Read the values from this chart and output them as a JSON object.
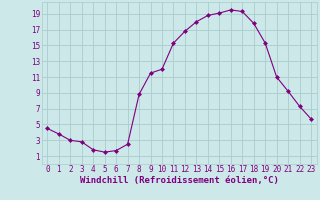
{
  "x": [
    0,
    1,
    2,
    3,
    4,
    5,
    6,
    7,
    8,
    9,
    10,
    11,
    12,
    13,
    14,
    15,
    16,
    17,
    18,
    19,
    20,
    21,
    22,
    23
  ],
  "y": [
    4.5,
    3.8,
    3.0,
    2.8,
    1.8,
    1.5,
    1.7,
    2.5,
    8.8,
    11.5,
    12.0,
    15.3,
    16.8,
    18.0,
    18.8,
    19.1,
    19.5,
    19.3,
    17.8,
    15.3,
    11.0,
    9.2,
    7.3,
    5.7
  ],
  "line_color": "#800080",
  "marker": "D",
  "marker_size": 2,
  "bg_color": "#cce8e8",
  "grid_color": "#aacccc",
  "xlabel": "Windchill (Refroidissement éolien,°C)",
  "yticks": [
    1,
    3,
    5,
    7,
    9,
    11,
    13,
    15,
    17,
    19
  ],
  "xlim": [
    -0.5,
    23.5
  ],
  "ylim": [
    0.0,
    20.5
  ],
  "label_color": "#800080",
  "tick_fontsize": 5.5,
  "xlabel_fontsize": 6.5
}
